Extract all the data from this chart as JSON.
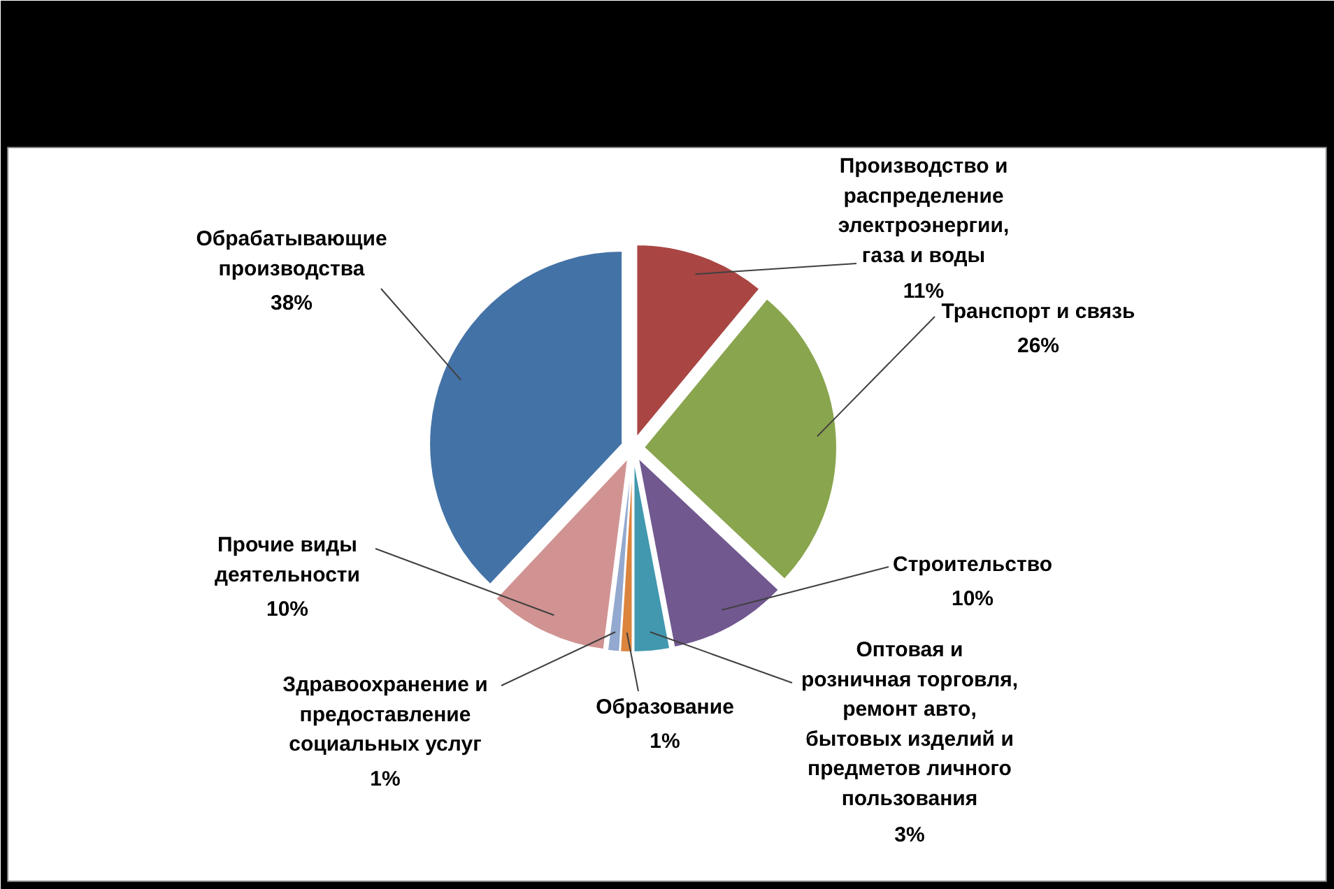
{
  "chart_data": {
    "type": "pie",
    "categories": [
      "Производство и\nраспределение\nэлектроэнергии,\nгаза и воды",
      "Транспорт и связь",
      "Строительство",
      "Оптовая и\nрозничная торговля,\nремонт авто,\nбытовых изделий и\nпредметов личного\nпользования",
      "Образование",
      "Здравоохранение и\nпредоставление\nсоциальных услуг",
      "Прочие виды\nдеятельности",
      "Обрабатывающие\nпроизводства"
    ],
    "values": [
      11,
      26,
      10,
      3,
      1,
      1,
      10,
      38
    ],
    "colors": [
      "#a94644",
      "#89a54e",
      "#71588f",
      "#4298af",
      "#db843d",
      "#93a9cf",
      "#d19392",
      "#4372a6"
    ],
    "value_labels": [
      "11%",
      "26%",
      "10%",
      "3%",
      "1%",
      "1%",
      "10%",
      "38%"
    ]
  }
}
